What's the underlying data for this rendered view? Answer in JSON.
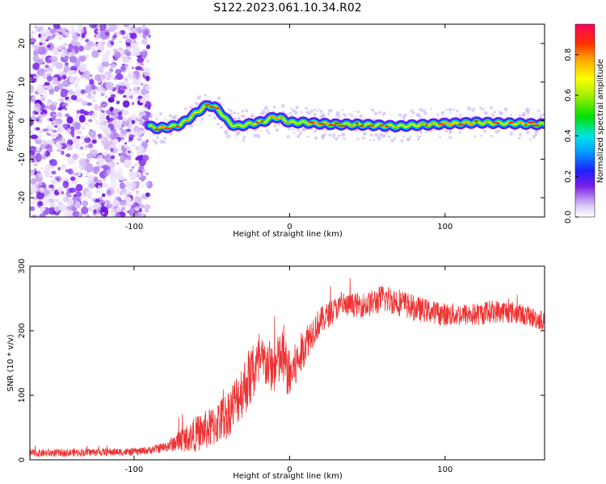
{
  "title": "S122.2023.061.10.34.R02",
  "chart_data": [
    {
      "type": "heatmap",
      "xlabel": "Height of straight line (km)",
      "ylabel": "Frequency (Hz)",
      "xlim": [
        -167,
        164
      ],
      "ylim": [
        -25,
        25
      ],
      "x_ticks": [
        -100,
        0,
        100
      ],
      "y_ticks": [
        -20,
        -10,
        0,
        10,
        20
      ],
      "noise_region_x": [
        -167,
        -90
      ],
      "ridge": {
        "x": [
          -90,
          -85,
          -80,
          -75,
          -70,
          -65,
          -60,
          -55,
          -52,
          -48,
          -44,
          -40,
          -37,
          -34,
          -30,
          -25,
          -20,
          -15,
          -10,
          -5,
          0,
          10,
          20,
          30,
          40,
          50,
          60,
          70,
          80,
          90,
          100,
          110,
          120,
          130,
          140,
          150,
          164
        ],
        "y": [
          -1.5,
          -2,
          -1.8,
          -1.5,
          -1,
          0.5,
          2,
          3.5,
          4,
          3.5,
          2,
          0,
          -1,
          -1.5,
          -1.2,
          -0.8,
          -0.5,
          0,
          1,
          0.5,
          -0.5,
          -0.5,
          -0.8,
          -1,
          -1,
          -1.1,
          -1.3,
          -1.5,
          -1.2,
          -1,
          -0.8,
          -0.7,
          -0.5,
          -0.6,
          -0.7,
          -0.8,
          -1
        ]
      },
      "colorbar": {
        "label": "Normalized spectral amplitude",
        "range": [
          0,
          0.95
        ],
        "ticks": [
          0.0,
          0.2,
          0.4,
          0.6,
          0.8
        ]
      }
    },
    {
      "type": "line",
      "xlabel": "Height of straight line (km)",
      "ylabel": "SNR (10 * v/v)",
      "xlim": [
        -167,
        164
      ],
      "ylim": [
        0,
        300
      ],
      "x_ticks": [
        -100,
        0,
        100
      ],
      "y_ticks": [
        0,
        100,
        200,
        300
      ],
      "color": "#ee3333",
      "series": [
        {
          "x": [
            -167,
            -120,
            -100,
            -90,
            -80,
            -75,
            -70,
            -65,
            -60,
            -55,
            -50,
            -45,
            -40,
            -35,
            -30,
            -25,
            -20,
            -15,
            -10,
            -5,
            0,
            5,
            10,
            15,
            20,
            25,
            30,
            40,
            50,
            60,
            70,
            80,
            90,
            100,
            110,
            120,
            130,
            140,
            150,
            164
          ],
          "values": [
            10,
            12,
            12,
            15,
            20,
            25,
            30,
            35,
            40,
            45,
            50,
            60,
            70,
            90,
            110,
            130,
            145,
            150,
            140,
            160,
            130,
            150,
            180,
            200,
            215,
            225,
            235,
            240,
            240,
            250,
            245,
            235,
            230,
            225,
            225,
            225,
            230,
            230,
            225,
            215
          ],
          "noise_amplitude": [
            6,
            6,
            6,
            6,
            8,
            12,
            18,
            22,
            28,
            30,
            32,
            35,
            38,
            40,
            45,
            50,
            45,
            40,
            40,
            45,
            40,
            35,
            30,
            25,
            22,
            20,
            18,
            18,
            20,
            22,
            22,
            20,
            18,
            18,
            18,
            18,
            18,
            18,
            16,
            16
          ]
        }
      ]
    }
  ]
}
